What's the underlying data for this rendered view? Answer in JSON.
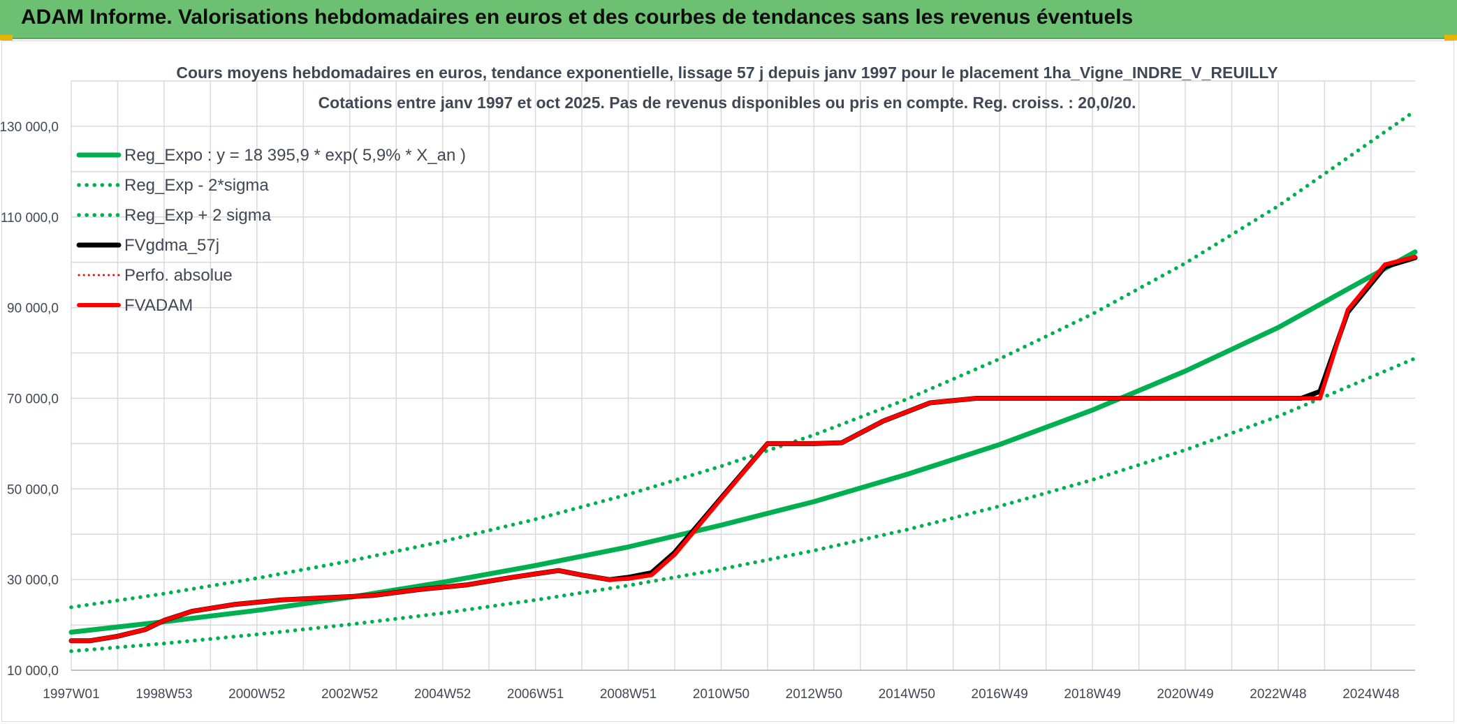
{
  "banner": {
    "title": "ADAM Informe. Valorisations hebdomadaires en euros et des courbes de tendances sans les revenus éventuels"
  },
  "colors": {
    "banner": "#6cc072",
    "reg_expo": "#00b050",
    "fvgdma": "#000000",
    "fvadam": "#ff0000",
    "perfo": "#ff0000",
    "grid": "#d9d9d9"
  },
  "chart_data": {
    "type": "line",
    "title": "Cours moyens hebdomadaires en euros, tendance exponentielle, lissage 57 j depuis janv 1997 pour le placement 1ha_Vigne_INDRE_V_REUILLY",
    "subtitle": "Cotations entre janv 1997 et oct 2025. Pas de revenus disponibles ou pris en compte. Reg. croiss. : 20,0/20.",
    "xlabel": "",
    "ylabel": "",
    "x_tick_labels": [
      "1997W01",
      "1998W53",
      "2000W52",
      "2002W52",
      "2004W52",
      "2006W51",
      "2008W51",
      "2010W50",
      "2012W50",
      "2014W50",
      "2016W49",
      "2018W49",
      "2020W49",
      "2022W48",
      "2024W48"
    ],
    "x_tick_years": [
      1997.0,
      1999.0,
      2001.0,
      2003.0,
      2005.0,
      2007.0,
      2009.0,
      2011.0,
      2013.0,
      2015.0,
      2017.0,
      2019.0,
      2021.0,
      2023.0,
      2025.0
    ],
    "x_range_years": [
      1997.0,
      2025.95
    ],
    "y_tick_labels": [
      "10 000,0",
      "30 000,0",
      "50 000,0",
      "70 000,0",
      "90 000,0",
      "110 000,0",
      "130 000,0"
    ],
    "y_ticks": [
      10000,
      30000,
      50000,
      70000,
      90000,
      110000,
      130000
    ],
    "ylim": [
      10000,
      140000
    ],
    "grid": true,
    "legend_position": "top-left",
    "legend": [
      {
        "name": "Reg_Expo : y = 18 395,9 * exp( 5,9% *  X_an )",
        "style": "solid-thick",
        "color": "#00b050"
      },
      {
        "name": "Reg_Exp - 2*sigma",
        "style": "dotted",
        "color": "#00b050"
      },
      {
        "name": "Reg_Exp + 2 sigma",
        "style": "dotted",
        "color": "#00b050"
      },
      {
        "name": "FVgdma_57j",
        "style": "solid",
        "color": "#000000"
      },
      {
        "name": "Perfo. absolue",
        "style": "dotted",
        "color": "#ff0000"
      },
      {
        "name": "FVADAM",
        "style": "solid-thick",
        "color": "#ff0000"
      }
    ],
    "series": [
      {
        "name": "Reg_Expo : y = 18 395,9 * exp( 5,9% *  X_an )",
        "x": [
          1997.0,
          1999.0,
          2001.0,
          2003.0,
          2005.0,
          2007.0,
          2009.0,
          2011.0,
          2013.0,
          2015.0,
          2017.0,
          2019.0,
          2021.0,
          2023.0,
          2025.95
        ],
        "y": [
          18400,
          20700,
          23200,
          26100,
          29400,
          33100,
          37200,
          42000,
          47200,
          53200,
          59800,
          67400,
          76000,
          85600,
          102300
        ]
      },
      {
        "name": "Reg_Exp - 2*sigma",
        "x": [
          1997.0,
          1999.0,
          2001.0,
          2003.0,
          2005.0,
          2007.0,
          2009.0,
          2011.0,
          2013.0,
          2015.0,
          2017.0,
          2019.0,
          2021.0,
          2023.0,
          2025.95
        ],
        "y": [
          14200,
          15900,
          17900,
          20100,
          22600,
          25500,
          28700,
          32300,
          36400,
          41000,
          46200,
          52000,
          58600,
          66000,
          78800
        ]
      },
      {
        "name": "Reg_Exp + 2 sigma",
        "x": [
          1997.0,
          1999.0,
          2001.0,
          2003.0,
          2005.0,
          2007.0,
          2009.0,
          2011.0,
          2013.0,
          2015.0,
          2017.0,
          2019.0,
          2021.0,
          2023.0,
          2025.95
        ],
        "y": [
          23900,
          26900,
          30300,
          34100,
          38400,
          43300,
          48800,
          55000,
          61900,
          69800,
          78700,
          88600,
          99800,
          112400,
          133400
        ]
      },
      {
        "name": "FVgdma_57j",
        "x": [
          1997.0,
          1997.4,
          1998.0,
          1998.6,
          1999.0,
          1999.6,
          2000.5,
          2001.5,
          2002.5,
          2003.5,
          2004.5,
          2005.5,
          2006.5,
          2007.5,
          2008.0,
          2008.6,
          2009.0,
          2009.5,
          2010.0,
          2011.0,
          2012.0,
          2013.0,
          2013.6,
          2014.5,
          2015.5,
          2016.5,
          2017.5,
          2018.5,
          2019.5,
          2020.5,
          2021.5,
          2022.5,
          2023.5,
          2023.9,
          2024.5,
          2025.3,
          2025.95
        ],
        "y": [
          16500,
          16500,
          17500,
          19000,
          21000,
          23000,
          24500,
          25500,
          26000,
          26500,
          27800,
          28800,
          30500,
          32000,
          31000,
          30000,
          30500,
          31500,
          36000,
          48000,
          60000,
          60000,
          60200,
          65000,
          69000,
          70000,
          70000,
          70000,
          70000,
          70000,
          70000,
          70000,
          70000,
          71500,
          89000,
          99000,
          101000
        ]
      },
      {
        "name": "Perfo. absolue",
        "x": [
          1997.0,
          1997.4,
          1998.0,
          1998.6,
          1999.0,
          1999.6,
          2000.5,
          2001.5,
          2002.5,
          2003.5,
          2004.5,
          2005.5,
          2006.5,
          2007.5,
          2008.0,
          2008.6,
          2009.0,
          2009.5,
          2010.0,
          2011.0,
          2012.0,
          2013.0,
          2013.6,
          2014.5,
          2015.5,
          2016.5,
          2017.5,
          2018.5,
          2019.5,
          2020.5,
          2021.5,
          2022.5,
          2023.5,
          2023.9,
          2024.5,
          2025.3,
          2025.95
        ],
        "y": [
          16500,
          16500,
          17500,
          19000,
          21000,
          23000,
          24500,
          25500,
          26000,
          26500,
          27800,
          28800,
          30500,
          32000,
          31000,
          30000,
          30200,
          31000,
          35500,
          47800,
          60000,
          60000,
          60200,
          65000,
          69000,
          70000,
          70000,
          70000,
          70000,
          70000,
          70000,
          70000,
          70000,
          70000,
          89500,
          99500,
          101200
        ]
      },
      {
        "name": "FVADAM",
        "x": [
          1997.0,
          1997.4,
          1998.0,
          1998.6,
          1999.0,
          1999.6,
          2000.5,
          2001.5,
          2002.5,
          2003.5,
          2004.5,
          2005.5,
          2006.5,
          2007.5,
          2008.0,
          2008.6,
          2009.0,
          2009.5,
          2010.0,
          2011.0,
          2012.0,
          2013.0,
          2013.6,
          2014.5,
          2015.5,
          2016.5,
          2017.5,
          2018.5,
          2019.5,
          2020.5,
          2021.5,
          2022.5,
          2023.5,
          2023.9,
          2024.5,
          2025.3,
          2025.95
        ],
        "y": [
          16500,
          16500,
          17500,
          19000,
          21000,
          23000,
          24500,
          25500,
          26000,
          26500,
          27800,
          28800,
          30500,
          32000,
          31000,
          30000,
          30200,
          31000,
          35500,
          47800,
          60000,
          60000,
          60200,
          65000,
          69000,
          70000,
          70000,
          70000,
          70000,
          70000,
          70000,
          70000,
          70000,
          70000,
          89500,
          99500,
          101200
        ]
      }
    ]
  }
}
